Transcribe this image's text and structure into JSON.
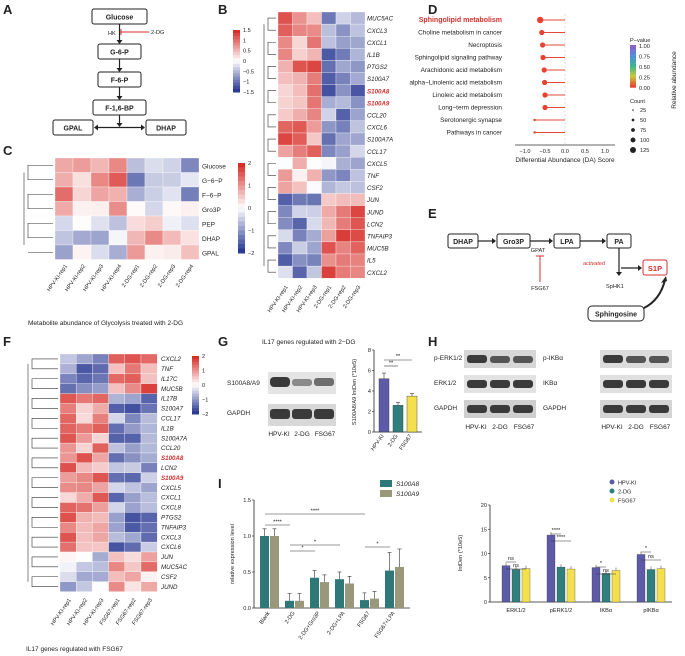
{
  "panels": {
    "A": "A",
    "B": "B",
    "C": "C",
    "D": "D",
    "E": "E",
    "F": "F",
    "G": "G",
    "H": "H",
    "I": "I"
  },
  "colors": {
    "heat_high": "#d7302b",
    "heat_mid": "#ffffff",
    "heat_low": "#2b3a94",
    "red_text": "#d32f2f",
    "bar_hpv": "#5d5aa8",
    "bar_2dg": "#2f7f7d",
    "bar_fsg": "#f4e04d",
    "bar_s100a8": "#2f7878",
    "bar_s100a9": "#9a987a"
  },
  "pathway": {
    "glucose": "Glucose",
    "hk": "HK",
    "dg": "2-DG",
    "g6p": "G-6-P",
    "f6p": "F-6-P",
    "f16bp": "F-1,6-BP",
    "gpal": "GPAL",
    "dhap": "DHAP"
  },
  "heatB": {
    "genes": [
      "MUC5AC",
      "CXCL3",
      "CXCL1",
      "IL1B",
      "PTGS2",
      "S100A7",
      "S100A8",
      "S100A9",
      "CCL20",
      "CXCL6",
      "S100A7A",
      "CCL17",
      "CXCL5",
      "TNF",
      "CSF2",
      "JUN",
      "JUND",
      "LCN2",
      "TNFAIP3",
      "MUC5B",
      "IL5",
      "CXCL2"
    ],
    "red_genes": [
      "S100A8",
      "S100A9"
    ],
    "samples": [
      "HPV-KI-rep1",
      "HPV-KI-rep2",
      "HPV-KI-rep3",
      "2-DG-rep1",
      "2-DG-rep2",
      "2-DG-rep3"
    ],
    "legend": [
      "1.5",
      "1",
      "0.5",
      "0",
      "−0.5",
      "−1",
      "−1.5"
    ],
    "caption": "IL17 genes regulated with 2−DG"
  },
  "heatC": {
    "rows": [
      "Glucose",
      "G−6−P",
      "F−6−P",
      "Gro3P",
      "PEP",
      "DHAP",
      "GPAL"
    ],
    "samples": [
      "HPV-KI-rep1",
      "HPV-KI-rep2",
      "HPV-KI-rep3",
      "HPV-KI-rep4",
      "2-DG-rep1",
      "2-DG-rep2",
      "2-DG-rep3",
      "2-DG-rep4"
    ],
    "legend": [
      "2",
      "1",
      "0",
      "−1",
      "−2"
    ],
    "caption": "Metabolite abundance of Glycolysis treated with 2-DG"
  },
  "heatF": {
    "genes": [
      "CXCL2",
      "TNF",
      "IL17C",
      "MUC5B",
      "IL17B",
      "S100A7",
      "CCL17",
      "IL1B",
      "S100A7A",
      "CCL20",
      "S100A8",
      "LCN2",
      "S100A9",
      "CXCL5",
      "CXCL1",
      "CXCL8",
      "PTGS2",
      "TNFAIP3",
      "CXCL3",
      "CXCL6",
      "JUN",
      "MUC5AC",
      "CSF2",
      "JUND"
    ],
    "red_genes": [
      "S100A8",
      "S100A9"
    ],
    "samples": [
      "HPV-KI-rep1",
      "HPV-KI-rep2",
      "HPV-KI-rep3",
      "FSG67-rep1",
      "FSG67-rep2",
      "FSG67-rep3"
    ],
    "legend": [
      "2",
      "1",
      "0",
      "−1",
      "−2"
    ],
    "caption": "IL17 genes regulated with FSG67"
  },
  "lollipop": {
    "pathways": [
      "Sphingolipid metabolism",
      "Choline metabolism in cancer",
      "Necroptosis",
      "Sphingolipid signaling pathway",
      "Arachidonic acid metabolism",
      "alpha−Linolenic acid metabolism",
      "Linoleic acid metabolism",
      "Long−term depression",
      "Serotonergic synapse",
      "Pathways in cancer"
    ],
    "highlight": "Sphingolipid metabolism",
    "da_scores": [
      -0.62,
      -0.58,
      -0.56,
      -0.55,
      -0.52,
      -0.51,
      -0.5,
      -0.5,
      -0.76,
      -0.76
    ],
    "xticks": [
      "−1.0",
      "−0.5",
      "0.0",
      "0.5",
      "1.0"
    ],
    "xlabel": "Differential Abundance (DA) Score",
    "ylabel": "Relative abundance",
    "pvalue_title": "P−value",
    "pvalue_ticks": [
      "1.00",
      "0.75",
      "0.50",
      "0.25",
      "0.00"
    ],
    "count_title": "Count",
    "count_ticks": [
      "25",
      "50",
      "75",
      "100",
      "125"
    ]
  },
  "panelE": {
    "dhap": "DHAP",
    "gro3p": "Gro3P",
    "lpa": "LPA",
    "pa": "PA",
    "s1p": "S1P",
    "sphingosine": "Sphingosine",
    "gpat": "GPAT",
    "fsg67": "FSG67",
    "activated": "activated",
    "sphk1": "SpHK1"
  },
  "panelG": {
    "row1": "S100A8/A9",
    "row2": "GAPDH",
    "lanes": [
      "HPV-KI",
      "2-DG",
      "FSG67"
    ],
    "chart_data": {
      "type": "bar",
      "categories": [
        "HPV-KI",
        "2-DG",
        "FSG67"
      ],
      "values": [
        5.2,
        2.6,
        3.5
      ],
      "errors": [
        0.55,
        0.3,
        0.25
      ],
      "ylabel": "S100A8/A9 IntDen (*10e5)",
      "ylim": [
        0,
        8
      ],
      "yticks": [
        "0",
        "2",
        "4",
        "6",
        "8"
      ],
      "sig": [
        "**",
        "**"
      ]
    }
  },
  "panelH": {
    "left_rows": [
      "p-ERK1/2",
      "ERK1/2",
      "GAPDH"
    ],
    "right_rows": [
      "p-IKBα",
      "IKBα",
      "GAPDH"
    ],
    "lanes": [
      "HPV-KI",
      "2-DG",
      "FSG67"
    ],
    "chart_data": {
      "type": "bar",
      "categories": [
        "ERK1/2",
        "pERK1/2",
        "IKBα",
        "pIKBα"
      ],
      "series": [
        {
          "name": "HPV-KI",
          "values": [
            7.5,
            13.8,
            7.1,
            9.8
          ]
        },
        {
          "name": "2-DG",
          "values": [
            6.7,
            7.2,
            5.9,
            6.7
          ]
        },
        {
          "name": "FSG67",
          "values": [
            6.9,
            6.8,
            6.5,
            6.9
          ]
        }
      ],
      "ylabel": "IntDen (*10e5)",
      "ylim": [
        0,
        20
      ],
      "yticks": [
        "0",
        "5",
        "10",
        "15",
        "20"
      ],
      "sig": [
        "ns",
        "ns",
        "****",
        "****",
        "*",
        "ns",
        "*",
        "ns"
      ]
    }
  },
  "panelI": {
    "chart_data": {
      "type": "bar",
      "categories": [
        "Blank",
        "2-DG",
        "2-DG+Gro3P",
        "2-DG+LPA",
        "FSG67",
        "FSG67+LPA"
      ],
      "series": [
        {
          "name": "S100A8",
          "values": [
            1.0,
            0.1,
            0.42,
            0.4,
            0.11,
            0.52
          ]
        },
        {
          "name": "S100A9",
          "values": [
            1.0,
            0.1,
            0.36,
            0.34,
            0.13,
            0.57
          ]
        }
      ],
      "ylabel": "relative expression level",
      "ylim": [
        0,
        1.5
      ],
      "yticks": [
        "0.0",
        "0.5",
        "1.0",
        "1.5"
      ],
      "sig": [
        "****",
        "*",
        "*",
        "****",
        "*"
      ]
    }
  }
}
